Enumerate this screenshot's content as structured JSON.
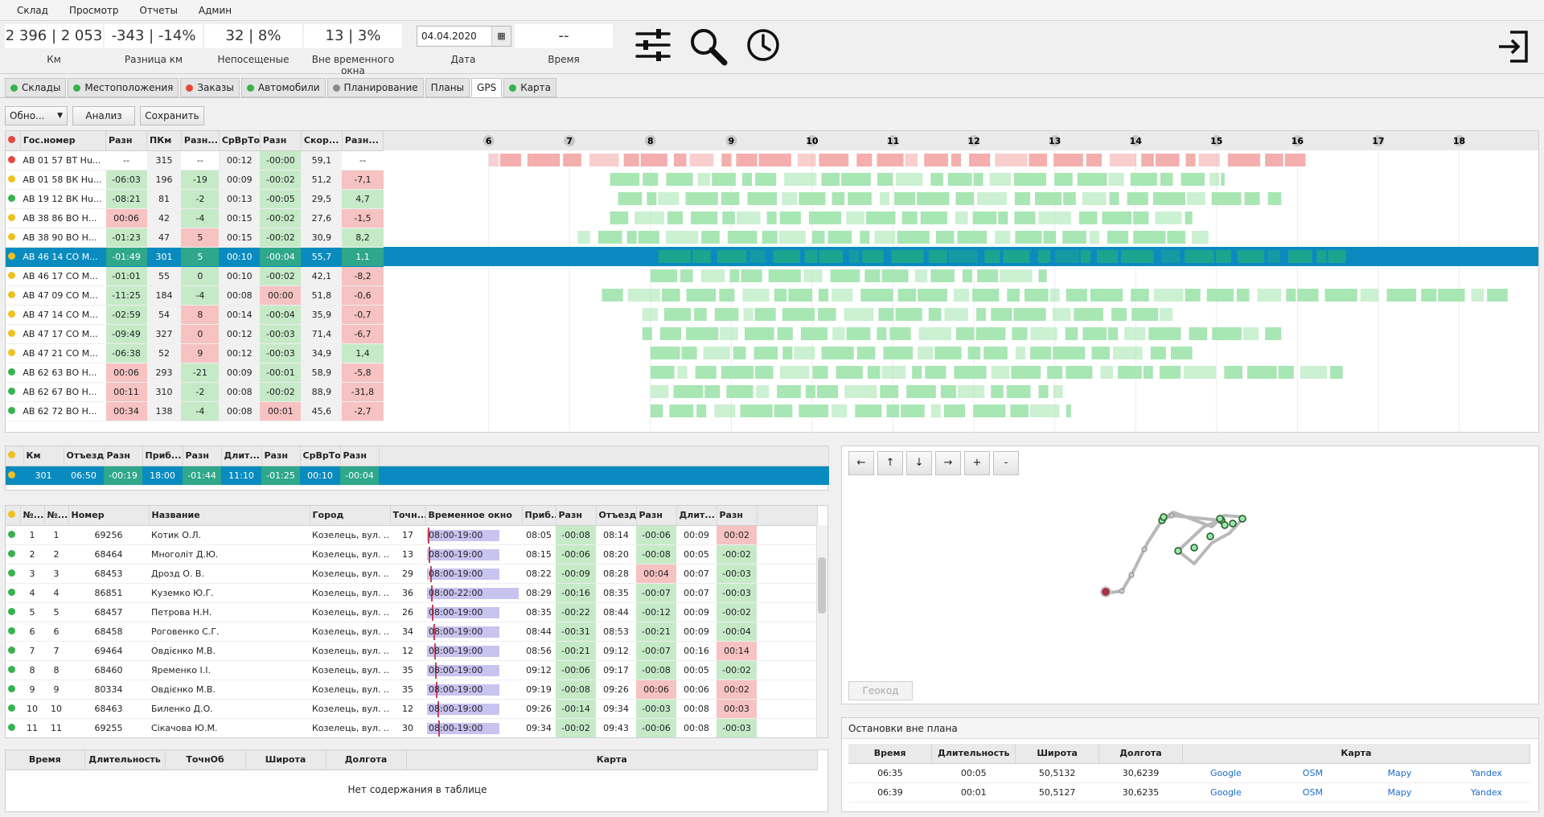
{
  "menu": [
    "Склад",
    "Просмотр",
    "Отчеты",
    "Админ"
  ],
  "stats": {
    "km": {
      "value": "2 396 | 2 053",
      "label": "Км"
    },
    "diff_km": {
      "value": "-343 | -14%",
      "label": "Разница км"
    },
    "unvisited": {
      "value": "32 | 8%",
      "label": "Непосещеные"
    },
    "out_window": {
      "value": "13 | 3%",
      "label": "Вне временного окна"
    },
    "date": {
      "value": "04.04.2020",
      "label": "Дата"
    },
    "time": {
      "value": "--",
      "label": "Время"
    }
  },
  "tabs": [
    {
      "label": "Склады",
      "dot": "#37b24d"
    },
    {
      "label": "Местоположения",
      "dot": "#37b24d"
    },
    {
      "label": "Заказы",
      "dot": "#e5483e"
    },
    {
      "label": "Автомобили",
      "dot": "#37b24d"
    },
    {
      "label": "Планирование",
      "dot": "#8a8a8a"
    },
    {
      "label": "Планы",
      "dot": ""
    },
    {
      "label": "GPS",
      "dot": "",
      "active": true
    },
    {
      "label": "Карта",
      "dot": "#37b24d"
    }
  ],
  "toolbar": {
    "refresh": "Обно...",
    "analyze": "Анализ",
    "save": "Сохранить"
  },
  "vehicles": {
    "headers": [
      "Гос.номер",
      "Разн",
      "ПКм",
      "Разн...",
      "СрВрТо",
      "Разн",
      "Скор...",
      "Разн..."
    ],
    "hours": [
      "6",
      "7",
      "8",
      "9",
      "10",
      "11",
      "12",
      "13",
      "14",
      "15",
      "16",
      "17",
      "18"
    ],
    "rows": [
      {
        "status": "#e5483e",
        "plate": "АВ 01 57 ВТ Hu...",
        "d1": "--",
        "pkm": "315",
        "d2": "--",
        "avg": "00:12",
        "d3": "-00:00",
        "spd": "59,1",
        "d4": "--",
        "c1": "",
        "c2": "",
        "c3": "g",
        "c4": "",
        "start": 6.0,
        "end": 16.1,
        "col": "#f4aeae"
      },
      {
        "status": "#f0c020",
        "plate": "АВ 01 58 ВК Hu...",
        "d1": "-06:03",
        "pkm": "196",
        "d2": "-19",
        "avg": "00:09",
        "d3": "-00:02",
        "spd": "51,2",
        "d4": "-7,1",
        "c1": "g",
        "c2": "g",
        "c3": "g",
        "c4": "r",
        "start": 7.5,
        "end": 15.1,
        "col": "#a8e6b4"
      },
      {
        "status": "#37b24d",
        "plate": "АВ 19 12 ВК Hu...",
        "d1": "-08:21",
        "pkm": "81",
        "d2": "-2",
        "avg": "00:13",
        "d3": "-00:05",
        "spd": "29,5",
        "d4": "4,7",
        "c1": "g",
        "c2": "g",
        "c3": "g",
        "c4": "g",
        "start": 7.6,
        "end": 15.8,
        "col": "#a8e6b4"
      },
      {
        "status": "#f0c020",
        "plate": "АВ 38 86 ВО Н...",
        "d1": "00:06",
        "pkm": "42",
        "d2": "-4",
        "avg": "00:15",
        "d3": "-00:02",
        "spd": "27,6",
        "d4": "-1,5",
        "c1": "r",
        "c2": "g",
        "c3": "g",
        "c4": "r",
        "start": 7.5,
        "end": 14.7,
        "col": "#a8e6b4"
      },
      {
        "status": "#f0c020",
        "plate": "АВ 38 90 ВО Н...",
        "d1": "-01:23",
        "pkm": "47",
        "d2": "5",
        "avg": "00:15",
        "d3": "-00:02",
        "spd": "30,9",
        "d4": "8,2",
        "c1": "g",
        "c2": "r",
        "c3": "g",
        "c4": "g",
        "start": 7.1,
        "end": 14.9,
        "col": "#a8e6b4"
      },
      {
        "status": "#f0c020",
        "plate": "АВ 46 14 СО М...",
        "d1": "-01:49",
        "pkm": "301",
        "d2": "5",
        "avg": "00:10",
        "d3": "-00:04",
        "spd": "55,7",
        "d4": "1,1",
        "c1": "g",
        "c2": "g",
        "c3": "g",
        "c4": "g",
        "start": 8.1,
        "end": 16.6,
        "col": "#1aa58f",
        "sel": true
      },
      {
        "status": "#f0c020",
        "plate": "АВ 46 17 СО М...",
        "d1": "-01:01",
        "pkm": "55",
        "d2": "0",
        "avg": "00:10",
        "d3": "-00:02",
        "spd": "42,1",
        "d4": "-8,2",
        "c1": "g",
        "c2": "g",
        "c3": "g",
        "c4": "r",
        "start": 8.0,
        "end": 12.9,
        "col": "#a8e6b4"
      },
      {
        "status": "#f0c020",
        "plate": "АВ 47 09 СО М...",
        "d1": "-11:25",
        "pkm": "184",
        "d2": "-4",
        "avg": "00:08",
        "d3": "00:00",
        "spd": "51,8",
        "d4": "-0,6",
        "c1": "g",
        "c2": "g",
        "c3": "r",
        "c4": "r",
        "start": 7.4,
        "end": 18.6,
        "col": "#a8e6b4"
      },
      {
        "status": "#f0c020",
        "plate": "АВ 47 14 СО М...",
        "d1": "-02:59",
        "pkm": "54",
        "d2": "8",
        "avg": "00:14",
        "d3": "-00:04",
        "spd": "35,9",
        "d4": "-0,7",
        "c1": "g",
        "c2": "r",
        "c3": "g",
        "c4": "r",
        "start": 7.9,
        "end": 14.5,
        "col": "#a8e6b4"
      },
      {
        "status": "#f0c020",
        "plate": "АВ 47 17 СО М...",
        "d1": "-09:49",
        "pkm": "327",
        "d2": "0",
        "avg": "00:12",
        "d3": "-00:03",
        "spd": "71,4",
        "d4": "-6,7",
        "c1": "g",
        "c2": "r",
        "c3": "g",
        "c4": "r",
        "start": 7.9,
        "end": 15.8,
        "col": "#a8e6b4"
      },
      {
        "status": "#f0c020",
        "plate": "АВ 47 21 СО М...",
        "d1": "-06:38",
        "pkm": "52",
        "d2": "9",
        "avg": "00:12",
        "d3": "-00:03",
        "spd": "34,9",
        "d4": "1,4",
        "c1": "g",
        "c2": "r",
        "c3": "g",
        "c4": "g",
        "start": 8.0,
        "end": 14.7,
        "col": "#a8e6b4"
      },
      {
        "status": "#37b24d",
        "plate": "АВ 62 63 ВО Н...",
        "d1": "00:06",
        "pkm": "293",
        "d2": "-21",
        "avg": "00:09",
        "d3": "-00:01",
        "spd": "58,9",
        "d4": "-5,8",
        "c1": "r",
        "c2": "g",
        "c3": "g",
        "c4": "r",
        "start": 8.0,
        "end": 16.6,
        "col": "#a8e6b4"
      },
      {
        "status": "#37b24d",
        "plate": "АВ 62 67 ВО Н...",
        "d1": "00:11",
        "pkm": "310",
        "d2": "-2",
        "avg": "00:08",
        "d3": "-00:02",
        "spd": "88,9",
        "d4": "-31,8",
        "c1": "r",
        "c2": "g",
        "c3": "g",
        "c4": "r",
        "start": 8.0,
        "end": 13.1,
        "col": "#a8e6b4"
      },
      {
        "status": "#37b24d",
        "plate": "АВ 62 72 ВО Н...",
        "d1": "00:34",
        "pkm": "138",
        "d2": "-4",
        "avg": "00:08",
        "d3": "00:01",
        "spd": "45,6",
        "d4": "-2,7",
        "c1": "r",
        "c2": "g",
        "c3": "r",
        "c4": "r",
        "start": 8.0,
        "end": 13.2,
        "col": "#a8e6b4"
      }
    ]
  },
  "trip": {
    "headers": [
      "Км",
      "Отъезд",
      "Разн",
      "Приб...",
      "Разн",
      "Длит...",
      "Разн",
      "СрВрТо",
      "Разн"
    ],
    "row": [
      "301",
      "06:50",
      "-00:19",
      "18:00",
      "-01:44",
      "11:10",
      "-01:25",
      "00:10",
      "-00:04"
    ]
  },
  "stops": {
    "headers": [
      "№...",
      "№...",
      "Номер",
      "Название",
      "Город",
      "Точн...",
      "Временное окно",
      "Приб...",
      "Разн",
      "Отъезд",
      "Разн",
      "Длит...",
      "Разн"
    ],
    "rows": [
      [
        "1",
        "1",
        "69256",
        "Котик О.Л.",
        "Козелець, вул. ...",
        "17",
        "08:00-19:00",
        "08:05",
        "-00:08",
        "08:14",
        "-00:06",
        "00:09",
        "00:02"
      ],
      [
        "2",
        "2",
        "68464",
        "Многоліт Д.Ю.",
        "Козелець, вул. ...",
        "13",
        "08:00-19:00",
        "08:15",
        "-00:06",
        "08:20",
        "-00:08",
        "00:05",
        "-00:02"
      ],
      [
        "3",
        "3",
        "68453",
        "Дрозд О. В.",
        "Козелець, вул. ...",
        "29",
        "08:00-19:00",
        "08:22",
        "-00:09",
        "08:28",
        "00:04",
        "00:07",
        "-00:03"
      ],
      [
        "4",
        "4",
        "86851",
        "Куземко Ю.Г.",
        "Козелець, вул. ...",
        "36",
        "08:00-22:00",
        "08:29",
        "-00:16",
        "08:35",
        "-00:07",
        "00:07",
        "-00:03"
      ],
      [
        "5",
        "5",
        "68457",
        "Петрова Н.Н.",
        "Козелець, вул. ...",
        "26",
        "08:00-19:00",
        "08:35",
        "-00:22",
        "08:44",
        "-00:12",
        "00:09",
        "-00:02"
      ],
      [
        "6",
        "6",
        "68458",
        "Роговенко С.Г.",
        "Козелець, вул. ...",
        "34",
        "08:00-19:00",
        "08:44",
        "-00:31",
        "08:53",
        "-00:21",
        "00:09",
        "-00:04"
      ],
      [
        "7",
        "7",
        "69464",
        "Овдієнко М.В.",
        "Козелець, вул. ...",
        "12",
        "08:00-19:00",
        "08:56",
        "-00:21",
        "09:12",
        "-00:07",
        "00:16",
        "00:14"
      ],
      [
        "8",
        "8",
        "68460",
        "Яременко І.І.",
        "Козелець, вул. ...",
        "35",
        "08:00-19:00",
        "09:12",
        "-00:06",
        "09:17",
        "-00:08",
        "00:05",
        "-00:02"
      ],
      [
        "9",
        "9",
        "80334",
        "Овдієнко М.В.",
        "Козелець, вул. ...",
        "35",
        "08:00-19:00",
        "09:19",
        "-00:08",
        "09:26",
        "00:06",
        "00:06",
        "00:02"
      ],
      [
        "10",
        "10",
        "68463",
        "Биленко Д.О.",
        "Козелець, вул. ...",
        "12",
        "08:00-19:00",
        "09:26",
        "-00:14",
        "09:34",
        "-00:03",
        "00:08",
        "00:03"
      ],
      [
        "11",
        "11",
        "69255",
        "Сікачова Ю.М.",
        "Козелець, вул. ...",
        "30",
        "08:00-19:00",
        "09:34",
        "-00:02",
        "09:43",
        "-00:06",
        "00:08",
        "-00:03"
      ]
    ]
  },
  "events": {
    "headers": [
      "Время",
      "Длительность",
      "ТочнОб",
      "Широта",
      "Долгота",
      "Карта"
    ],
    "empty": "Нет содержания в таблице"
  },
  "map": {
    "buttons": [
      "←",
      "↑",
      "↓",
      "→",
      "+",
      "-"
    ],
    "geocode": "Геокод"
  },
  "offplan": {
    "title": "Остановки вне плана",
    "headers": [
      "Время",
      "Длительность",
      "Широта",
      "Долгота",
      "Карта"
    ],
    "rows": [
      {
        "time": "06:35",
        "dur": "00:05",
        "lat": "50,5132",
        "lon": "30,6239"
      },
      {
        "time": "06:39",
        "dur": "00:01",
        "lat": "50,5127",
        "lon": "30,6235"
      }
    ],
    "links": [
      "Google",
      "OSM",
      "Mapy",
      "Yandex"
    ]
  }
}
